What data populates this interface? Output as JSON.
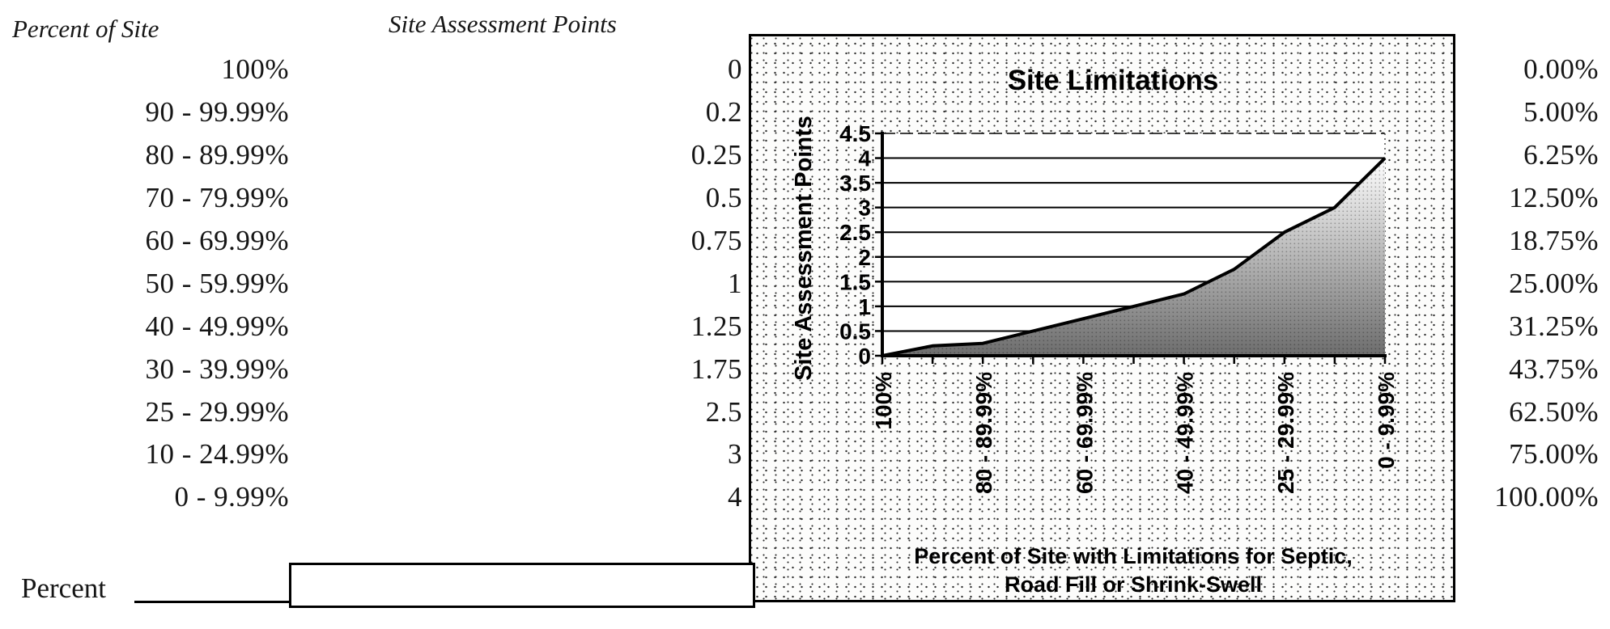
{
  "page": {
    "left_header": "Percent of Site",
    "points_header": "Site Assessment Points"
  },
  "table": {
    "rows": [
      {
        "range": "100%",
        "points": "0",
        "percent": "0.00%"
      },
      {
        "range": "90 - 99.99%",
        "points": "0.2",
        "percent": "5.00%"
      },
      {
        "range": "80 - 89.99%",
        "points": "0.25",
        "percent": "6.25%"
      },
      {
        "range": "70 - 79.99%",
        "points": "0.5",
        "percent": "12.50%"
      },
      {
        "range": "60 - 69.99%",
        "points": "0.75",
        "percent": "18.75%"
      },
      {
        "range": "50 - 59.99%",
        "points": "1",
        "percent": "25.00%"
      },
      {
        "range": "40 - 49.99%",
        "points": "1.25",
        "percent": "31.25%"
      },
      {
        "range": "30 - 39.99%",
        "points": "1.75",
        "percent": "43.75%"
      },
      {
        "range": "25 - 29.99%",
        "points": "2.5",
        "percent": "62.50%"
      },
      {
        "range": "10 - 24.99%",
        "points": "3",
        "percent": "75.00%"
      },
      {
        "range": "0 - 9.99%",
        "points": "4",
        "percent": "100.00%"
      }
    ]
  },
  "form": {
    "label": "Percent",
    "value": ""
  },
  "chart_data": {
    "type": "area",
    "title": "Site Limitations",
    "categories": [
      "100%",
      "90 - 99.99%",
      "80 - 89.99%",
      "70 - 79.99%",
      "60 - 69.99%",
      "50 - 59.99%",
      "40 - 49.99%",
      "30 - 39.99%",
      "25 - 29.99%",
      "10 - 24.99%",
      "0 - 9.99%"
    ],
    "values": [
      0,
      0.2,
      0.25,
      0.5,
      0.75,
      1,
      1.25,
      1.75,
      2.5,
      3,
      4
    ],
    "x_tick_labels": [
      "100%",
      "80 - 89.99%",
      "60 - 69.99%",
      "40 - 49.99%",
      "25 - 29.99%",
      "0 - 9.99%"
    ],
    "xlabel": "Percent of Site with Limitations for Septic, Road Fill or Shrink-Swell",
    "xlabel_lines": [
      "Percent of Site with Limitations for Septic,",
      "Road Fill or Shrink-Swell"
    ],
    "ylabel": "Site Assessment Points",
    "ylim": [
      0,
      4.5
    ],
    "ytick_step": 0.5,
    "grid": true,
    "legend": false,
    "line_color": "#000000",
    "fill_style": "halftone-gradient"
  }
}
